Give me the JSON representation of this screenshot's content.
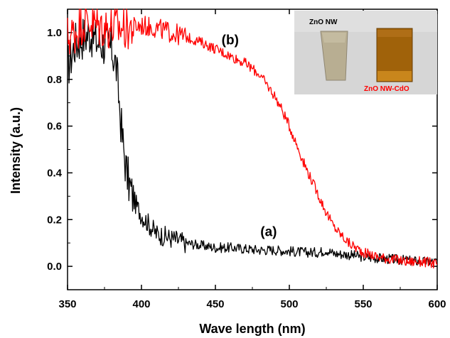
{
  "chart_data": {
    "type": "line",
    "xlabel": "Wave length (nm)",
    "ylabel": "Intensity (a.u.)",
    "xlim": [
      350,
      600
    ],
    "ylim": [
      -0.1,
      1.1
    ],
    "xticks": [
      350,
      400,
      450,
      500,
      550,
      600
    ],
    "yticks": [
      0.0,
      0.2,
      0.4,
      0.6,
      0.8,
      1.0
    ],
    "xtick_labels": [
      "350",
      "400",
      "450",
      "500",
      "550",
      "600"
    ],
    "ytick_labels": [
      "0.0",
      "0.2",
      "0.4",
      "0.6",
      "0.8",
      "1.0"
    ],
    "grid": false,
    "series": [
      {
        "name": "(a)",
        "color": "#000000",
        "x": [
          350,
          355,
          360,
          365,
          370,
          375,
          380,
          383,
          385,
          387,
          390,
          393,
          395,
          400,
          405,
          410,
          420,
          430,
          440,
          450,
          460,
          470,
          480,
          490,
          500,
          510,
          520,
          525,
          530,
          540,
          550,
          560,
          570,
          580,
          590,
          600
        ],
        "y": [
          0.85,
          0.95,
          0.98,
          1.0,
          0.96,
          0.95,
          0.93,
          0.85,
          0.7,
          0.55,
          0.4,
          0.32,
          0.28,
          0.22,
          0.18,
          0.14,
          0.12,
          0.1,
          0.09,
          0.08,
          0.08,
          0.075,
          0.07,
          0.07,
          0.065,
          0.06,
          0.06,
          0.07,
          0.055,
          0.05,
          0.04,
          0.035,
          0.03,
          0.025,
          0.02,
          0.02
        ]
      },
      {
        "name": "(b)",
        "color": "#ff0000",
        "x": [
          350,
          355,
          360,
          365,
          370,
          380,
          390,
          400,
          410,
          420,
          430,
          440,
          450,
          460,
          470,
          480,
          490,
          495,
          500,
          505,
          510,
          515,
          520,
          525,
          530,
          540,
          550,
          560,
          570,
          580,
          590,
          600
        ],
        "y": [
          0.98,
          1.0,
          1.05,
          1.05,
          1.03,
          1.02,
          1.02,
          1.03,
          1.02,
          1.0,
          0.98,
          0.96,
          0.93,
          0.9,
          0.87,
          0.82,
          0.73,
          0.67,
          0.6,
          0.52,
          0.44,
          0.37,
          0.3,
          0.23,
          0.17,
          0.1,
          0.06,
          0.04,
          0.03,
          0.02,
          0.02,
          0.01
        ]
      }
    ],
    "annotations": [
      {
        "text": "(a)",
        "x": 486,
        "y": 0.13
      },
      {
        "text": "(b)",
        "x": 460,
        "y": 0.95
      }
    ],
    "inset": {
      "labels": [
        {
          "text": "ZnO NW",
          "color": "#000000"
        },
        {
          "text": "ZnO NW-CdO",
          "color": "#ff0000"
        }
      ]
    }
  }
}
